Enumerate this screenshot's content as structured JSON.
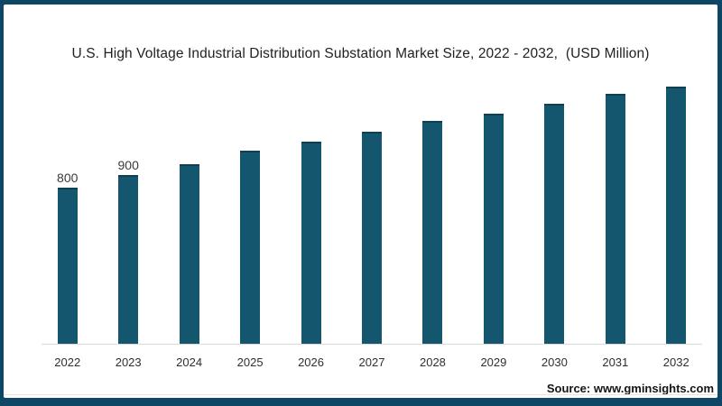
{
  "chart": {
    "title": "U.S. High Voltage Industrial Distribution Substation Market Size, 2022 - 2032,  (USD Million)",
    "source": "Source: www.gminsights.com",
    "bar_color": "#14566E",
    "bar_cap_color": "#0E4051",
    "axis_color": "#d9d9d9",
    "frame_color": "#0E4765",
    "card_background": "#ffffff"
  },
  "chart_data": {
    "type": "bar",
    "title": "U.S. High Voltage Industrial Distribution Substation Market Size, 2022 - 2032,  (USD Million)",
    "categories": [
      "2022",
      "2023",
      "2024",
      "2025",
      "2026",
      "2027",
      "2028",
      "2029",
      "2030",
      "2031",
      "2032"
    ],
    "values": [
      800,
      900,
      990,
      1100,
      1180,
      1260,
      1350,
      1410,
      1490,
      1570,
      1630
    ],
    "data_labels": [
      "800",
      "900",
      "",
      "",
      "",
      "",
      "",
      "",
      "",
      "",
      ""
    ],
    "labeled_points": {
      "2022": 800,
      "2023": 900
    },
    "xlabel": "",
    "ylabel": "USD Million",
    "ylim": [
      0,
      1700
    ],
    "grid": false,
    "legend": "none",
    "note": "Only the 2022 (800) and 2023 (900) bars carry printed data labels; remaining values are estimated from bar heights.",
    "source_credit": "Source: www.gminsights.com"
  }
}
